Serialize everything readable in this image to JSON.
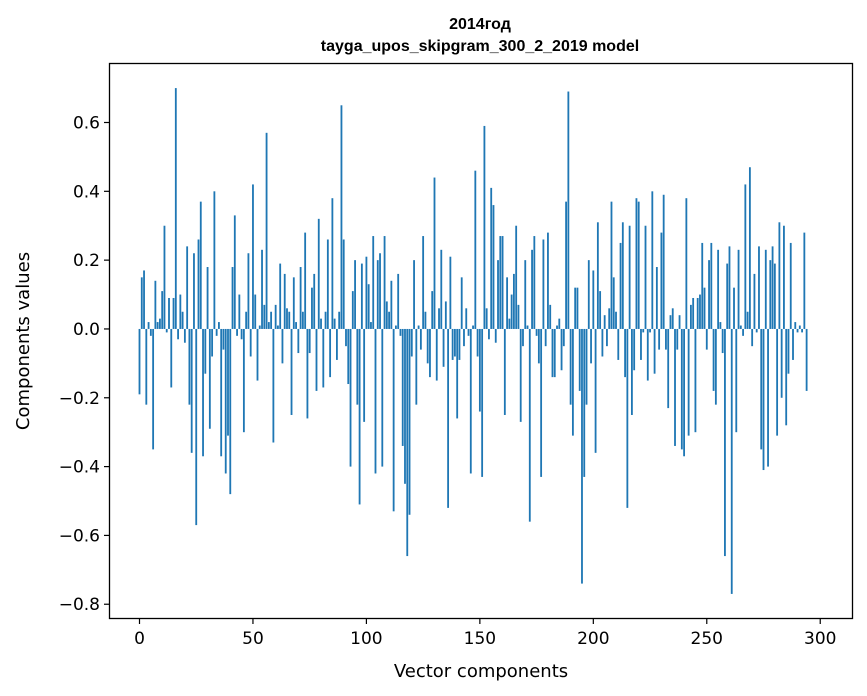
{
  "chart_data": {
    "type": "bar",
    "title": "2014год",
    "subtitle": "tayga_upos_skipgram_300_2_2019 model",
    "xlabel": "Vector components",
    "ylabel": "Components values",
    "xlim": [
      -13,
      314
    ],
    "ylim": [
      -0.84,
      0.77
    ],
    "xticks": [
      0,
      50,
      100,
      150,
      200,
      250,
      300
    ],
    "xtick_labels": [
      "0",
      "50",
      "100",
      "150",
      "200",
      "250",
      "300"
    ],
    "yticks": [
      -0.8,
      -0.6,
      -0.4,
      -0.2,
      0.0,
      0.2,
      0.4,
      0.6
    ],
    "ytick_labels": [
      "−0.8",
      "−0.6",
      "−0.4",
      "−0.2",
      "0.0",
      "0.2",
      "0.4",
      "0.6"
    ],
    "bar_color": "#1f77b4",
    "grid": false,
    "values": [
      -0.19,
      0.15,
      0.17,
      -0.22,
      0.02,
      -0.02,
      -0.35,
      0.14,
      0.02,
      0.03,
      0.11,
      0.3,
      -0.01,
      0.09,
      -0.17,
      0.09,
      0.7,
      -0.03,
      0.1,
      0.05,
      -0.04,
      0.24,
      -0.22,
      -0.36,
      0.22,
      -0.57,
      0.26,
      0.37,
      -0.37,
      -0.13,
      0.18,
      -0.29,
      -0.08,
      0.4,
      -0.02,
      0.02,
      -0.37,
      -0.06,
      -0.42,
      -0.31,
      -0.48,
      0.18,
      0.33,
      -0.02,
      0.1,
      -0.03,
      -0.3,
      0.05,
      0.22,
      -0.08,
      0.42,
      0.1,
      -0.15,
      0.01,
      0.23,
      0.07,
      0.57,
      0.02,
      0.05,
      -0.33,
      0.07,
      0.01,
      0.19,
      -0.1,
      0.16,
      0.06,
      0.05,
      -0.25,
      0.15,
      0.02,
      -0.07,
      0.18,
      0.05,
      0.28,
      -0.26,
      -0.07,
      0.12,
      0.16,
      -0.18,
      0.32,
      0.03,
      -0.17,
      0.05,
      0.26,
      -0.14,
      0.38,
      0.03,
      -0.09,
      0.05,
      0.65,
      0.26,
      -0.05,
      -0.16,
      -0.4,
      0.11,
      0.2,
      -0.22,
      -0.51,
      0.19,
      -0.27,
      0.21,
      0.13,
      0.02,
      0.27,
      -0.42,
      0.2,
      0.22,
      -0.4,
      0.27,
      0.08,
      0.05,
      0.14,
      -0.53,
      0.01,
      0.16,
      -0.02,
      -0.34,
      -0.45,
      -0.66,
      -0.54,
      -0.08,
      0.2,
      -0.22,
      0.01,
      -0.06,
      0.27,
      0.05,
      -0.1,
      -0.14,
      0.11,
      0.44,
      -0.15,
      0.06,
      0.23,
      -0.11,
      0.08,
      -0.52,
      0.21,
      -0.09,
      -0.08,
      -0.26,
      -0.09,
      0.15,
      -0.05,
      0.06,
      -0.02,
      -0.42,
      0.01,
      0.46,
      -0.08,
      -0.24,
      -0.43,
      0.59,
      0.06,
      -0.03,
      0.41,
      0.36,
      -0.04,
      0.2,
      0.27,
      0.27,
      -0.25,
      0.15,
      0.03,
      0.1,
      0.16,
      0.3,
      0.07,
      -0.27,
      -0.05,
      0.2,
      0.01,
      -0.56,
      0.23,
      0.27,
      -0.02,
      -0.1,
      -0.43,
      0.26,
      -0.05,
      0.28,
      0.07,
      -0.14,
      -0.14,
      0.01,
      0.03,
      -0.12,
      -0.05,
      0.37,
      0.69,
      -0.22,
      -0.31,
      0.12,
      0.12,
      -0.18,
      -0.74,
      -0.43,
      -0.22,
      0.2,
      -0.1,
      0.17,
      -0.36,
      0.31,
      0.11,
      -0.08,
      0.04,
      -0.05,
      0.06,
      0.37,
      0.15,
      0.05,
      -0.09,
      0.25,
      0.31,
      -0.14,
      -0.52,
      0.3,
      -0.25,
      -0.12,
      0.38,
      0.37,
      -0.09,
      -0.01,
      0.3,
      -0.15,
      -0.01,
      0.4,
      -0.13,
      0.18,
      -0.06,
      0.28,
      0.39,
      -0.06,
      -0.23,
      0.04,
      0.06,
      -0.34,
      -0.06,
      0.04,
      -0.35,
      -0.37,
      0.38,
      -0.31,
      0.07,
      0.09,
      -0.3,
      0.09,
      0.1,
      0.25,
      0.12,
      -0.06,
      0.2,
      0.25,
      -0.18,
      -0.22,
      0.23,
      0.02,
      -0.07,
      -0.66,
      0.19,
      0.24,
      -0.77,
      0.12,
      -0.3,
      0.23,
      0.01,
      -0.02,
      0.42,
      0.05,
      0.47,
      -0.05,
      0.16,
      -0.01,
      0.24,
      -0.35,
      -0.41,
      0.23,
      -0.4,
      0.2,
      0.24,
      0.19,
      -0.31,
      0.31,
      -0.2,
      0.3,
      -0.28,
      -0.13,
      0.25,
      -0.09,
      0.02,
      -0.01,
      0.01,
      -0.01,
      0.28,
      -0.18
    ]
  }
}
